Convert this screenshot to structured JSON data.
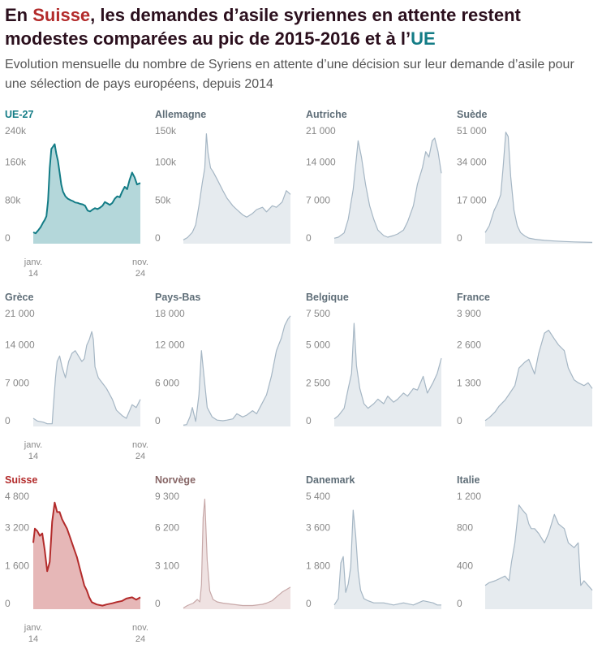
{
  "header": {
    "title_pre": "En ",
    "title_ch": "Suisse",
    "title_mid": ", les demandes d’asile syriennes en attente restent modestes comparées au pic de 2015-2016 et à l’",
    "title_eu": "UE",
    "subtitle": "Evolution mensuelle du nombre de Syriens en attente d’une décision sur leur demande d’asile pour une sélection de pays européens, depuis 2014"
  },
  "colors": {
    "eu_line": "#137c86",
    "eu_fill": "#b4d7da",
    "ch_line": "#b32b2b",
    "ch_fill": "#e6b7b7",
    "no_line": "#c7a8a8",
    "no_fill": "#efe2e2",
    "grey_line": "#a5b6c4",
    "grey_fill": "#e6ebef",
    "eu_title": "#137c86",
    "ch_title": "#b32b2b",
    "no_title": "#876666",
    "grey_title": "#5f6e78"
  },
  "chart_data": [
    {
      "type": "area",
      "title": "UE-27",
      "style": "eu",
      "ylim": [
        0,
        240000
      ],
      "yticks": [
        0,
        80000,
        160000,
        240000
      ],
      "ytick_labels": [
        "0",
        "80k",
        "160k",
        "240k"
      ],
      "x_start_label": [
        "janv.",
        "14"
      ],
      "x_end_label": [
        "nov.",
        "24"
      ],
      "x": [
        "2014-01",
        "2014-04",
        "2014-07",
        "2014-10",
        "2015-01",
        "2015-03",
        "2015-05",
        "2015-07",
        "2015-09",
        "2015-11",
        "2016-01",
        "2016-03",
        "2016-05",
        "2016-07",
        "2016-09",
        "2016-11",
        "2017-01",
        "2017-04",
        "2017-07",
        "2017-10",
        "2018-01",
        "2018-04",
        "2018-07",
        "2018-10",
        "2019-01",
        "2019-04",
        "2019-07",
        "2019-10",
        "2020-01",
        "2020-04",
        "2020-07",
        "2020-10",
        "2021-01",
        "2021-04",
        "2021-07",
        "2021-10",
        "2022-01",
        "2022-04",
        "2022-07",
        "2022-10",
        "2023-01",
        "2023-04",
        "2023-07",
        "2023-10",
        "2024-01",
        "2024-04",
        "2024-07",
        "2024-11"
      ],
      "y": [
        24000,
        22000,
        28000,
        35000,
        45000,
        50000,
        58000,
        90000,
        160000,
        200000,
        205000,
        210000,
        190000,
        175000,
        150000,
        125000,
        110000,
        100000,
        95000,
        92000,
        90000,
        87000,
        86000,
        84000,
        83000,
        80000,
        70000,
        68000,
        72000,
        75000,
        73000,
        76000,
        80000,
        88000,
        85000,
        82000,
        86000,
        95000,
        100000,
        98000,
        110000,
        120000,
        115000,
        135000,
        150000,
        140000,
        125000,
        128000
      ]
    },
    {
      "type": "area",
      "title": "Allemagne",
      "style": "grey",
      "ylim": [
        0,
        150000
      ],
      "yticks": [
        0,
        50000,
        100000,
        150000
      ],
      "ytick_labels": [
        "0",
        "50k",
        "100k",
        "150k"
      ],
      "x": [
        "2014-01",
        "2014-06",
        "2014-12",
        "2015-04",
        "2015-08",
        "2015-12",
        "2016-03",
        "2016-05",
        "2016-07",
        "2016-10",
        "2017-01",
        "2017-06",
        "2018-01",
        "2018-06",
        "2019-01",
        "2019-06",
        "2020-01",
        "2020-06",
        "2021-01",
        "2021-06",
        "2022-01",
        "2022-06",
        "2023-01",
        "2023-06",
        "2024-01",
        "2024-06",
        "2024-11"
      ],
      "y": [
        5000,
        8000,
        15000,
        25000,
        50000,
        80000,
        100000,
        145000,
        120000,
        100000,
        95000,
        85000,
        70000,
        60000,
        50000,
        45000,
        38000,
        35000,
        40000,
        45000,
        48000,
        42000,
        50000,
        48000,
        55000,
        70000,
        65000
      ]
    },
    {
      "type": "area",
      "title": "Autriche",
      "style": "grey",
      "ylim": [
        0,
        21000
      ],
      "yticks": [
        0,
        7000,
        14000,
        21000
      ],
      "ytick_labels": [
        "0",
        "7 000",
        "14 000",
        "21 000"
      ],
      "x": [
        "2014-01",
        "2014-06",
        "2015-01",
        "2015-06",
        "2015-12",
        "2016-04",
        "2016-06",
        "2016-10",
        "2017-03",
        "2017-08",
        "2018-01",
        "2018-06",
        "2019-01",
        "2019-06",
        "2020-01",
        "2020-06",
        "2021-01",
        "2021-06",
        "2022-01",
        "2022-06",
        "2022-12",
        "2023-04",
        "2023-08",
        "2023-12",
        "2024-03",
        "2024-07",
        "2024-11"
      ],
      "y": [
        1000,
        1200,
        2000,
        4500,
        10000,
        16000,
        19000,
        16000,
        11000,
        7000,
        4500,
        2500,
        1500,
        1200,
        1500,
        1800,
        2500,
        4000,
        7000,
        11000,
        14000,
        17000,
        16000,
        19000,
        19500,
        17000,
        13000
      ]
    },
    {
      "type": "area",
      "title": "Suède",
      "style": "grey",
      "ylim": [
        0,
        51000
      ],
      "yticks": [
        0,
        17000,
        34000,
        51000
      ],
      "ytick_labels": [
        "0",
        "17 000",
        "34 000",
        "51 000"
      ],
      "x": [
        "2014-01",
        "2014-06",
        "2014-12",
        "2015-04",
        "2015-08",
        "2015-11",
        "2016-02",
        "2016-05",
        "2016-08",
        "2016-12",
        "2017-04",
        "2017-08",
        "2018-01",
        "2018-06",
        "2019-01",
        "2019-06",
        "2020-01",
        "2021-01",
        "2022-01",
        "2023-01",
        "2024-01",
        "2024-11"
      ],
      "y": [
        5000,
        8000,
        15000,
        18000,
        22000,
        35000,
        50000,
        48000,
        30000,
        15000,
        8000,
        5000,
        3500,
        2500,
        2000,
        1800,
        1500,
        1200,
        1000,
        800,
        700,
        600
      ]
    },
    {
      "type": "area",
      "title": "Grèce",
      "style": "grey",
      "ylim": [
        0,
        21000
      ],
      "yticks": [
        0,
        7000,
        14000,
        21000
      ],
      "ytick_labels": [
        "0",
        "7 000",
        "14 000",
        "21 000"
      ],
      "x_start_label": [
        "janv.",
        "14"
      ],
      "x_end_label": [
        "nov.",
        "24"
      ],
      "x": [
        "2014-01",
        "2014-06",
        "2015-01",
        "2015-06",
        "2015-12",
        "2016-01",
        "2016-04",
        "2016-06",
        "2016-09",
        "2016-12",
        "2017-04",
        "2017-08",
        "2017-12",
        "2018-04",
        "2018-08",
        "2018-12",
        "2019-03",
        "2019-06",
        "2019-09",
        "2019-12",
        "2020-02",
        "2020-04",
        "2020-08",
        "2021-01",
        "2021-06",
        "2022-01",
        "2022-06",
        "2023-01",
        "2023-06",
        "2024-01",
        "2024-06",
        "2024-11"
      ],
      "y": [
        1500,
        1000,
        800,
        500,
        500,
        3000,
        9000,
        12000,
        13000,
        11000,
        9000,
        12000,
        13500,
        14000,
        13000,
        12000,
        12500,
        15000,
        16000,
        17500,
        16000,
        11000,
        9000,
        8000,
        7000,
        5000,
        3000,
        2000,
        1500,
        4000,
        3500,
        5000
      ]
    },
    {
      "type": "area",
      "title": "Pays-Bas",
      "style": "grey",
      "ylim": [
        0,
        18000
      ],
      "yticks": [
        0,
        6000,
        12000,
        18000
      ],
      "ytick_labels": [
        "0",
        "6 000",
        "12 000",
        "18 000"
      ],
      "x": [
        "2014-01",
        "2014-05",
        "2014-09",
        "2014-12",
        "2015-04",
        "2015-08",
        "2015-11",
        "2016-02",
        "2016-06",
        "2016-12",
        "2017-06",
        "2018-01",
        "2018-06",
        "2019-01",
        "2019-06",
        "2020-01",
        "2020-06",
        "2021-01",
        "2021-06",
        "2021-12",
        "2022-06",
        "2022-12",
        "2023-06",
        "2023-12",
        "2024-04",
        "2024-08",
        "2024-11"
      ],
      "y": [
        200,
        300,
        1500,
        3000,
        800,
        5000,
        12000,
        8000,
        3000,
        1500,
        1000,
        900,
        1000,
        1200,
        2000,
        1500,
        1800,
        2500,
        2000,
        3500,
        5000,
        8000,
        12000,
        14000,
        16000,
        17000,
        17500
      ]
    },
    {
      "type": "area",
      "title": "Belgique",
      "style": "grey",
      "ylim": [
        0,
        7500
      ],
      "yticks": [
        0,
        2500,
        5000,
        7500
      ],
      "ytick_labels": [
        "0",
        "2 500",
        "5 000",
        "7 500"
      ],
      "x": [
        "2014-01",
        "2014-06",
        "2015-01",
        "2015-06",
        "2015-10",
        "2016-01",
        "2016-04",
        "2016-08",
        "2017-01",
        "2017-06",
        "2018-01",
        "2018-06",
        "2019-01",
        "2019-06",
        "2020-01",
        "2020-06",
        "2021-01",
        "2021-06",
        "2022-01",
        "2022-06",
        "2023-01",
        "2023-06",
        "2024-01",
        "2024-06",
        "2024-11"
      ],
      "y": [
        500,
        700,
        1200,
        2500,
        3500,
        6800,
        4000,
        2500,
        1500,
        1200,
        1500,
        1800,
        1500,
        2000,
        1600,
        1800,
        2200,
        2000,
        2500,
        2400,
        3300,
        2200,
        2900,
        3500,
        4500
      ]
    },
    {
      "type": "area",
      "title": "France",
      "style": "grey",
      "ylim": [
        0,
        3900
      ],
      "yticks": [
        0,
        1300,
        2600,
        3900
      ],
      "ytick_labels": [
        "0",
        "1 300",
        "2 600",
        "3 900"
      ],
      "x": [
        "2014-01",
        "2014-06",
        "2015-01",
        "2015-06",
        "2016-01",
        "2016-06",
        "2017-01",
        "2017-06",
        "2018-01",
        "2018-06",
        "2019-01",
        "2019-06",
        "2020-01",
        "2020-06",
        "2021-01",
        "2021-06",
        "2022-01",
        "2022-06",
        "2023-01",
        "2023-06",
        "2024-01",
        "2024-06",
        "2024-11"
      ],
      "y": [
        200,
        300,
        500,
        700,
        900,
        1100,
        1400,
        2000,
        2200,
        2300,
        1800,
        2500,
        3200,
        3300,
        3000,
        2800,
        2600,
        2000,
        1600,
        1500,
        1400,
        1500,
        1300
      ]
    },
    {
      "type": "area",
      "title": "Suisse",
      "style": "ch",
      "ylim": [
        0,
        4800
      ],
      "yticks": [
        0,
        1600,
        3200,
        4800
      ],
      "ytick_labels": [
        "0",
        "1 600",
        "3 200",
        "4 800"
      ],
      "x_start_label": [
        "janv.",
        "14"
      ],
      "x_end_label": [
        "nov.",
        "24"
      ],
      "x": [
        "2014-01",
        "2014-03",
        "2014-06",
        "2014-09",
        "2014-12",
        "2015-03",
        "2015-06",
        "2015-09",
        "2015-12",
        "2016-03",
        "2016-06",
        "2016-09",
        "2016-12",
        "2017-03",
        "2017-06",
        "2017-09",
        "2017-12",
        "2018-03",
        "2018-06",
        "2018-09",
        "2018-12",
        "2019-03",
        "2019-06",
        "2019-09",
        "2019-12",
        "2020-06",
        "2021-01",
        "2021-06",
        "2022-01",
        "2022-06",
        "2023-01",
        "2023-06",
        "2024-01",
        "2024-06",
        "2024-11"
      ],
      "y": [
        2800,
        3400,
        3300,
        3100,
        3200,
        2500,
        1600,
        2000,
        3700,
        4500,
        4100,
        4100,
        3800,
        3600,
        3400,
        3100,
        2800,
        2500,
        2200,
        1800,
        1400,
        1000,
        800,
        500,
        300,
        200,
        150,
        200,
        250,
        300,
        350,
        450,
        500,
        400,
        500
      ]
    },
    {
      "type": "area",
      "title": "Norvège",
      "style": "no",
      "ylim": [
        0,
        9300
      ],
      "yticks": [
        0,
        3100,
        6200,
        9300
      ],
      "ytick_labels": [
        "0",
        "3 100",
        "6 200",
        "9 300"
      ],
      "x": [
        "2014-01",
        "2014-06",
        "2015-01",
        "2015-06",
        "2015-09",
        "2015-11",
        "2016-01",
        "2016-03",
        "2016-06",
        "2016-09",
        "2017-01",
        "2017-06",
        "2018-01",
        "2019-01",
        "2020-01",
        "2021-01",
        "2022-01",
        "2022-06",
        "2023-01",
        "2023-06",
        "2024-01",
        "2024-06",
        "2024-11"
      ],
      "y": [
        100,
        300,
        500,
        800,
        600,
        2000,
        7500,
        9000,
        4000,
        1500,
        800,
        600,
        500,
        400,
        300,
        300,
        400,
        500,
        700,
        1000,
        1400,
        1600,
        1800
      ]
    },
    {
      "type": "area",
      "title": "Danemark",
      "style": "grey",
      "ylim": [
        0,
        5400
      ],
      "yticks": [
        0,
        1800,
        3600,
        5400
      ],
      "ytick_labels": [
        "0",
        "1 800",
        "3 600",
        "5 400"
      ],
      "x": [
        "2014-01",
        "2014-06",
        "2014-09",
        "2014-12",
        "2015-03",
        "2015-06",
        "2015-09",
        "2015-12",
        "2016-03",
        "2016-06",
        "2016-09",
        "2017-01",
        "2017-06",
        "2018-01",
        "2019-01",
        "2020-01",
        "2021-01",
        "2022-01",
        "2023-01",
        "2024-01",
        "2024-06",
        "2024-11"
      ],
      "y": [
        200,
        500,
        2200,
        2500,
        800,
        1200,
        2000,
        4700,
        3500,
        1800,
        900,
        500,
        400,
        300,
        300,
        200,
        300,
        200,
        400,
        300,
        200,
        200
      ]
    },
    {
      "type": "area",
      "title": "Italie",
      "style": "grey",
      "ylim": [
        0,
        1200
      ],
      "yticks": [
        0,
        400,
        800,
        1200
      ],
      "ytick_labels": [
        "0",
        "400",
        "800",
        "1 200"
      ],
      "x": [
        "2014-01",
        "2014-06",
        "2015-01",
        "2015-06",
        "2016-01",
        "2016-06",
        "2016-09",
        "2017-01",
        "2017-06",
        "2017-10",
        "2018-03",
        "2018-06",
        "2018-09",
        "2019-01",
        "2019-06",
        "2020-01",
        "2020-06",
        "2021-01",
        "2021-06",
        "2022-01",
        "2022-06",
        "2023-01",
        "2023-06",
        "2023-09",
        "2024-01",
        "2024-06",
        "2024-11"
      ],
      "y": [
        250,
        280,
        300,
        320,
        350,
        300,
        500,
        700,
        1100,
        1050,
        1000,
        900,
        850,
        850,
        800,
        700,
        800,
        1000,
        900,
        850,
        700,
        650,
        700,
        250,
        300,
        250,
        200
      ]
    }
  ]
}
